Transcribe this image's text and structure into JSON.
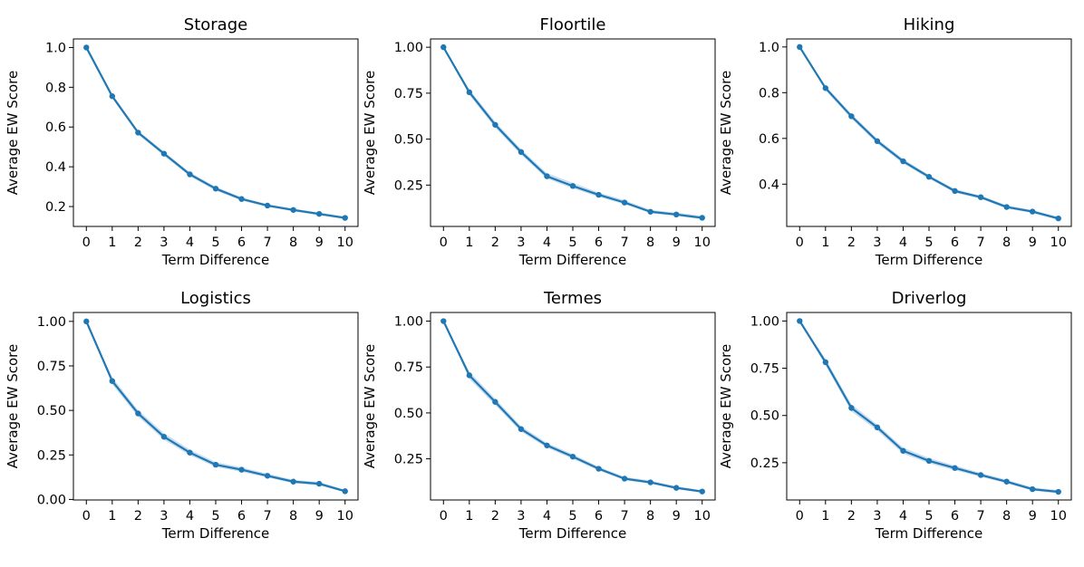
{
  "colors": {
    "line": "#1f77b4",
    "band": "#a6c8e6",
    "axis": "#000000"
  },
  "chart_data": [
    {
      "type": "line",
      "title": "Storage",
      "xlabel": "Term Difference",
      "ylabel": "Average EW Score",
      "x": [
        0,
        1,
        2,
        3,
        4,
        5,
        6,
        7,
        8,
        9,
        10
      ],
      "series": [
        {
          "values": [
            1.0,
            0.755,
            0.572,
            0.466,
            0.362,
            0.29,
            0.238,
            0.205,
            0.183,
            0.163,
            0.143
          ],
          "band_lower": [
            1.0,
            0.745,
            0.562,
            0.456,
            0.352,
            0.28,
            0.23,
            0.198,
            0.176,
            0.156,
            0.136
          ],
          "band_upper": [
            1.0,
            0.765,
            0.582,
            0.476,
            0.372,
            0.3,
            0.246,
            0.212,
            0.19,
            0.17,
            0.15
          ]
        }
      ],
      "xticks": [
        "0",
        "1",
        "2",
        "3",
        "4",
        "5",
        "6",
        "7",
        "8",
        "9",
        "10"
      ],
      "yticks": [
        "0.2",
        "0.4",
        "0.6",
        "0.8",
        "1.0"
      ],
      "xlim": [
        -0.5,
        10.5
      ],
      "ylim": [
        0.1,
        1.043
      ],
      "grid": false
    },
    {
      "type": "line",
      "title": "Floortile",
      "xlabel": "Term Difference",
      "ylabel": "Average EW Score",
      "x": [
        0,
        1,
        2,
        3,
        4,
        5,
        6,
        7,
        8,
        9,
        10
      ],
      "series": [
        {
          "values": [
            1.0,
            0.755,
            0.578,
            0.43,
            0.298,
            0.245,
            0.197,
            0.155,
            0.105,
            0.09,
            0.072
          ],
          "band_lower": [
            1.0,
            0.74,
            0.562,
            0.415,
            0.285,
            0.232,
            0.186,
            0.145,
            0.097,
            0.082,
            0.064
          ],
          "band_upper": [
            1.0,
            0.77,
            0.595,
            0.445,
            0.315,
            0.262,
            0.21,
            0.168,
            0.115,
            0.1,
            0.082
          ]
        }
      ],
      "xticks": [
        "0",
        "1",
        "2",
        "3",
        "4",
        "5",
        "6",
        "7",
        "8",
        "9",
        "10"
      ],
      "yticks": [
        "0.25",
        "0.50",
        "0.75",
        "1.00"
      ],
      "xlim": [
        -0.5,
        10.5
      ],
      "ylim": [
        0.025,
        1.045
      ],
      "grid": false
    },
    {
      "type": "line",
      "title": "Hiking",
      "xlabel": "Term Difference",
      "ylabel": "Average EW Score",
      "x": [
        0,
        1,
        2,
        3,
        4,
        5,
        6,
        7,
        8,
        9,
        10
      ],
      "series": [
        {
          "values": [
            1.0,
            0.82,
            0.697,
            0.588,
            0.5,
            0.432,
            0.37,
            0.343,
            0.3,
            0.28,
            0.25
          ],
          "band_lower": [
            1.0,
            0.81,
            0.687,
            0.578,
            0.49,
            0.424,
            0.362,
            0.336,
            0.293,
            0.273,
            0.243
          ],
          "band_upper": [
            1.0,
            0.83,
            0.707,
            0.598,
            0.51,
            0.44,
            0.378,
            0.35,
            0.307,
            0.287,
            0.257
          ]
        }
      ],
      "xticks": [
        "0",
        "1",
        "2",
        "3",
        "4",
        "5",
        "6",
        "7",
        "8",
        "9",
        "10"
      ],
      "yticks": [
        "0.4",
        "0.6",
        "0.8",
        "1.0"
      ],
      "xlim": [
        -0.5,
        10.5
      ],
      "ylim": [
        0.215,
        1.035
      ],
      "grid": false
    },
    {
      "type": "line",
      "title": "Logistics",
      "xlabel": "Term Difference",
      "ylabel": "Average EW Score",
      "x": [
        0,
        1,
        2,
        3,
        4,
        5,
        6,
        7,
        8,
        9,
        10
      ],
      "series": [
        {
          "values": [
            1.0,
            0.665,
            0.483,
            0.352,
            0.263,
            0.195,
            0.167,
            0.133,
            0.1,
            0.088,
            0.046
          ],
          "band_lower": [
            1.0,
            0.645,
            0.465,
            0.335,
            0.248,
            0.182,
            0.155,
            0.123,
            0.091,
            0.079,
            0.04
          ],
          "band_upper": [
            1.0,
            0.685,
            0.502,
            0.372,
            0.28,
            0.21,
            0.18,
            0.145,
            0.11,
            0.098,
            0.054
          ]
        }
      ],
      "xticks": [
        "0",
        "1",
        "2",
        "3",
        "4",
        "5",
        "6",
        "7",
        "8",
        "9",
        "10"
      ],
      "yticks": [
        "0.00",
        "0.25",
        "0.50",
        "0.75",
        "1.00"
      ],
      "xlim": [
        -0.5,
        10.5
      ],
      "ylim": [
        -0.003,
        1.05
      ],
      "grid": false
    },
    {
      "type": "line",
      "title": "Termes",
      "xlabel": "Term Difference",
      "ylabel": "Average EW Score",
      "x": [
        0,
        1,
        2,
        3,
        4,
        5,
        6,
        7,
        8,
        9,
        10
      ],
      "series": [
        {
          "values": [
            1.0,
            0.705,
            0.56,
            0.412,
            0.323,
            0.262,
            0.196,
            0.142,
            0.122,
            0.092,
            0.072
          ],
          "band_lower": [
            1.0,
            0.685,
            0.542,
            0.398,
            0.31,
            0.25,
            0.186,
            0.134,
            0.114,
            0.085,
            0.065
          ],
          "band_upper": [
            1.0,
            0.725,
            0.578,
            0.428,
            0.337,
            0.275,
            0.207,
            0.152,
            0.132,
            0.1,
            0.08
          ]
        }
      ],
      "xticks": [
        "0",
        "1",
        "2",
        "3",
        "4",
        "5",
        "6",
        "7",
        "8",
        "9",
        "10"
      ],
      "yticks": [
        "0.25",
        "0.50",
        "0.75",
        "1.00"
      ],
      "xlim": [
        -0.5,
        10.5
      ],
      "ylim": [
        0.026,
        1.047
      ],
      "grid": false
    },
    {
      "type": "line",
      "title": "Driverlog",
      "xlabel": "Term Difference",
      "ylabel": "Average EW Score",
      "x": [
        0,
        1,
        2,
        3,
        4,
        5,
        6,
        7,
        8,
        9,
        10
      ],
      "series": [
        {
          "values": [
            1.0,
            0.782,
            0.54,
            0.437,
            0.313,
            0.26,
            0.222,
            0.185,
            0.15,
            0.11,
            0.096
          ],
          "band_lower": [
            1.0,
            0.765,
            0.522,
            0.42,
            0.298,
            0.247,
            0.21,
            0.175,
            0.141,
            0.102,
            0.088
          ],
          "band_upper": [
            1.0,
            0.8,
            0.56,
            0.452,
            0.33,
            0.275,
            0.235,
            0.196,
            0.16,
            0.12,
            0.105
          ]
        }
      ],
      "xticks": [
        "0",
        "1",
        "2",
        "3",
        "4",
        "5",
        "6",
        "7",
        "8",
        "9",
        "10"
      ],
      "yticks": [
        "0.25",
        "0.50",
        "0.75",
        "1.00"
      ],
      "xlim": [
        -0.5,
        10.5
      ],
      "ylim": [
        0.053,
        1.045
      ],
      "grid": false
    }
  ]
}
